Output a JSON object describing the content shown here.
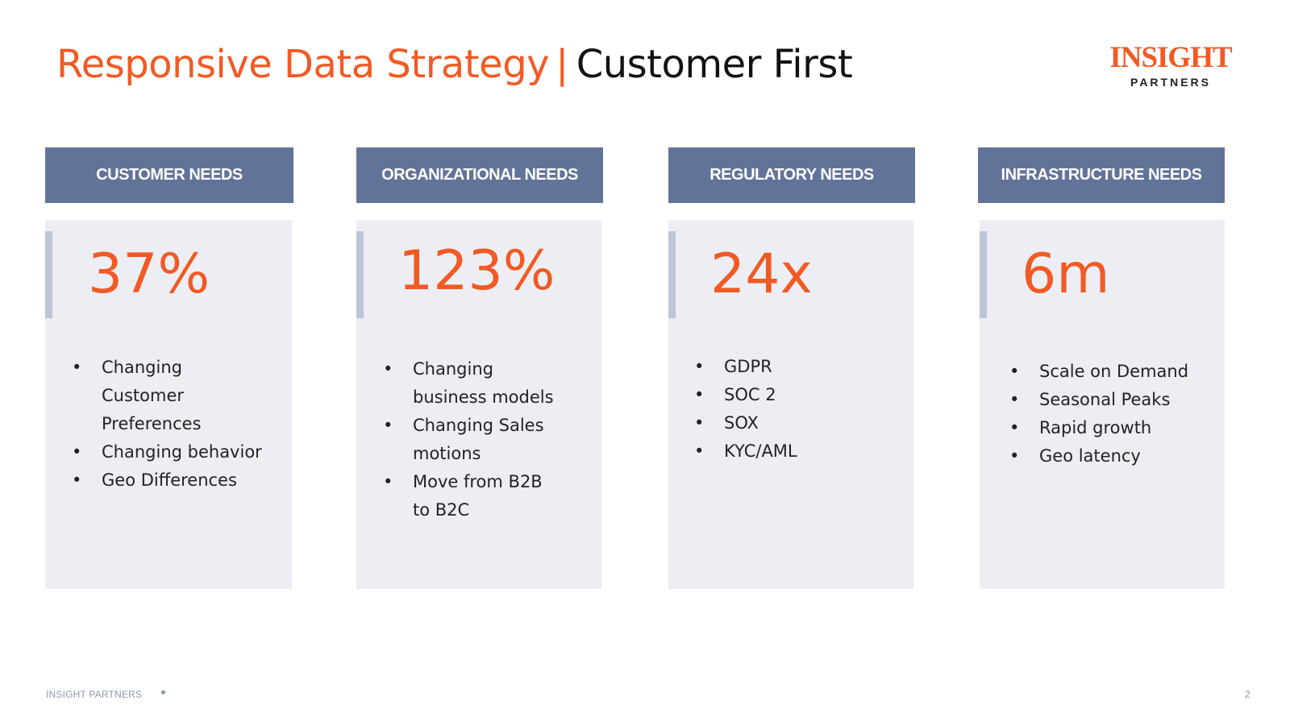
{
  "title": {
    "main": "Responsive Data Strategy",
    "separator": "|",
    "sub": "Customer First"
  },
  "logo": {
    "main": "INSIGHT",
    "sub": "PARTNERS"
  },
  "columns": [
    {
      "header": "CUSTOMER NEEDS",
      "stat": "37%",
      "bullets": [
        "Changing Customer Preferences",
        "Changing behavior",
        "Geo Differences"
      ]
    },
    {
      "header": "ORGANIZATIONAL NEEDS",
      "stat": "123%",
      "bullets": [
        "Changing business models",
        "Changing Sales motions",
        "Move from B2B to B2C"
      ]
    },
    {
      "header": "REGULATORY NEEDS",
      "stat": "24x",
      "bullets": [
        "GDPR",
        "SOC 2",
        "SOX",
        "KYC/AML"
      ]
    },
    {
      "header": "INFRASTRUCTURE NEEDS",
      "stat": "6m",
      "bullets": [
        "Scale on Demand",
        "Seasonal Peaks",
        "Rapid growth",
        "Geo latency"
      ]
    }
  ],
  "footer": {
    "company": "INSIGHT PARTNERS",
    "page_number": "2"
  },
  "colors": {
    "accent": "#f15a24",
    "header_bg": "#627399",
    "panel_bg": "#eceef3",
    "accent_bar": "#bcc6d6",
    "footer_text": "#8b97b3"
  }
}
